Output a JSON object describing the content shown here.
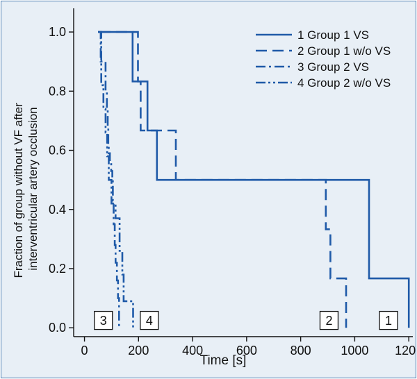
{
  "chart_data": {
    "type": "line",
    "subtype": "step (Kaplan-Meier survival curves)",
    "xlabel": "Time [s]",
    "ylabel_lines": [
      "Fraction of group without VF after",
      "interventricular artery occlusion"
    ],
    "xlim": [
      -40,
      1215
    ],
    "ylim": [
      -0.03,
      1.08
    ],
    "x_ticks": [
      0,
      200,
      400,
      600,
      800,
      1000,
      1200
    ],
    "y_ticks": [
      "0.0",
      "0.2",
      "0.4",
      "0.6",
      "0.8",
      "1.0"
    ],
    "line_color": "#1f5aa8",
    "background_color": "#e8eff6",
    "legend_position": "top-right",
    "series": [
      {
        "name": "1 Group 1 VS",
        "dash": "solid",
        "end_label": "1",
        "end_label_x": 1125,
        "points": [
          [
            50,
            1.0
          ],
          [
            178,
            1.0
          ],
          [
            178,
            0.833
          ],
          [
            233,
            0.833
          ],
          [
            233,
            0.667
          ],
          [
            268,
            0.667
          ],
          [
            268,
            0.5
          ],
          [
            1053,
            0.5
          ],
          [
            1053,
            0.167
          ],
          [
            1200,
            0.167
          ],
          [
            1200,
            0.0
          ]
        ]
      },
      {
        "name": "2 Group 1 w/o VS",
        "dash": "dashed",
        "end_label": "2",
        "end_label_x": 905,
        "points": [
          [
            55,
            1.0
          ],
          [
            198,
            1.0
          ],
          [
            198,
            0.833
          ],
          [
            208,
            0.833
          ],
          [
            208,
            0.667
          ],
          [
            338,
            0.667
          ],
          [
            338,
            0.5
          ],
          [
            893,
            0.5
          ],
          [
            893,
            0.333
          ],
          [
            910,
            0.333
          ],
          [
            910,
            0.167
          ],
          [
            968,
            0.167
          ],
          [
            968,
            0.0
          ]
        ]
      },
      {
        "name": "3 Group 2 VS",
        "dash": "dash-dot",
        "end_label": "3",
        "end_label_x": 70,
        "points": [
          [
            50,
            1.0
          ],
          [
            60,
            1.0
          ],
          [
            60,
            0.9
          ],
          [
            78,
            0.9
          ],
          [
            78,
            0.8
          ],
          [
            83,
            0.8
          ],
          [
            83,
            0.74
          ],
          [
            86,
            0.74
          ],
          [
            86,
            0.68
          ],
          [
            88,
            0.68
          ],
          [
            88,
            0.62
          ],
          [
            90,
            0.62
          ],
          [
            90,
            0.59
          ],
          [
            94,
            0.59
          ],
          [
            94,
            0.56
          ],
          [
            99,
            0.56
          ],
          [
            99,
            0.53
          ],
          [
            103,
            0.53
          ],
          [
            103,
            0.5
          ],
          [
            105,
            0.5
          ],
          [
            105,
            0.43
          ],
          [
            108,
            0.43
          ],
          [
            108,
            0.35
          ],
          [
            112,
            0.35
          ],
          [
            112,
            0.28
          ],
          [
            115,
            0.28
          ],
          [
            115,
            0.22
          ],
          [
            120,
            0.22
          ],
          [
            120,
            0.16
          ],
          [
            124,
            0.16
          ],
          [
            124,
            0.1
          ],
          [
            128,
            0.1
          ],
          [
            128,
            0.0
          ]
        ]
      },
      {
        "name": "4 Group 2 w/o VS",
        "dash": "dash-dot-dot",
        "end_label": "4",
        "end_label_x": 240,
        "points": [
          [
            50,
            1.0
          ],
          [
            62,
            1.0
          ],
          [
            62,
            0.82
          ],
          [
            70,
            0.82
          ],
          [
            70,
            0.74
          ],
          [
            78,
            0.74
          ],
          [
            78,
            0.66
          ],
          [
            84,
            0.66
          ],
          [
            84,
            0.58
          ],
          [
            90,
            0.58
          ],
          [
            90,
            0.5
          ],
          [
            100,
            0.5
          ],
          [
            100,
            0.42
          ],
          [
            115,
            0.42
          ],
          [
            115,
            0.37
          ],
          [
            130,
            0.37
          ],
          [
            130,
            0.26
          ],
          [
            140,
            0.26
          ],
          [
            140,
            0.18
          ],
          [
            145,
            0.18
          ],
          [
            145,
            0.09
          ],
          [
            180,
            0.09
          ],
          [
            180,
            0.0
          ]
        ]
      }
    ]
  }
}
